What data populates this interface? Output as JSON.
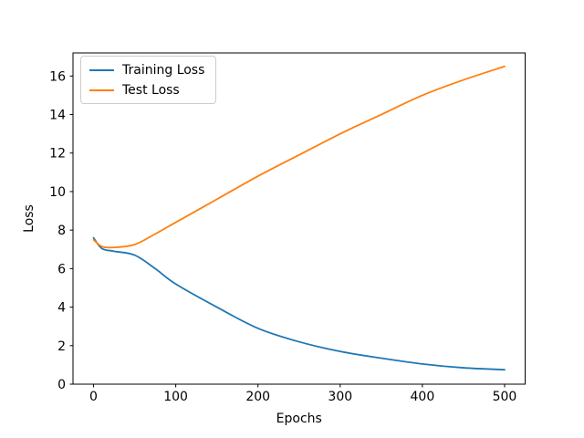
{
  "figure": {
    "background": "#ffffff"
  },
  "chart_data": {
    "type": "line",
    "title": "",
    "xlabel": "Epochs",
    "ylabel": "Loss",
    "x": [
      0,
      10,
      25,
      50,
      75,
      100,
      150,
      200,
      250,
      300,
      350,
      400,
      450,
      500
    ],
    "series": [
      {
        "name": "Training Loss",
        "color": "#1f77b4",
        "values": [
          7.6,
          7.05,
          6.9,
          6.7,
          6.0,
          5.2,
          4.0,
          2.9,
          2.2,
          1.7,
          1.35,
          1.05,
          0.85,
          0.75
        ]
      },
      {
        "name": "Test Loss",
        "color": "#ff7f0e",
        "values": [
          7.5,
          7.15,
          7.1,
          7.25,
          7.8,
          8.4,
          9.6,
          10.8,
          11.9,
          13.0,
          14.0,
          15.0,
          15.8,
          16.5
        ]
      }
    ],
    "xlim": [
      -25,
      525
    ],
    "ylim": [
      0,
      17.2
    ],
    "xticks": [
      0,
      100,
      200,
      300,
      400,
      500
    ],
    "yticks": [
      0,
      2,
      4,
      6,
      8,
      10,
      12,
      14,
      16
    ],
    "grid": false,
    "legend": {
      "position": "upper-left",
      "entries": [
        "Training Loss",
        "Test Loss"
      ]
    },
    "spine_color": "#000000"
  }
}
